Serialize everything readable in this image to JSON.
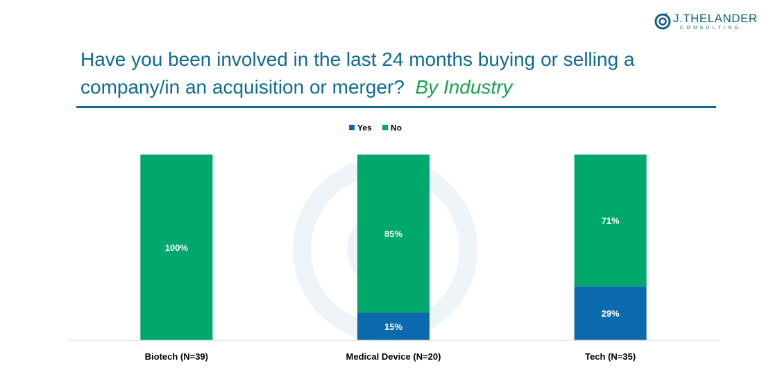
{
  "logo": {
    "brand": "J.THELANDER",
    "tagline": "CONSULTING"
  },
  "title": {
    "main": "Have you been involved in the last 24 months buying or selling a company/in an acquisition or merger?",
    "accent": "By Industry"
  },
  "colors": {
    "yes": "#0b6aad",
    "no": "#00a86b",
    "title": "#0e6a93",
    "accent": "#17a34a"
  },
  "chart_data": {
    "type": "bar",
    "stacked": true,
    "categories": [
      "Biotech (N=39)",
      "Medical Device (N=20)",
      "Tech (N=35)"
    ],
    "series": [
      {
        "name": "Yes",
        "values": [
          0,
          15,
          29
        ],
        "labels": [
          "",
          "15%",
          "29%"
        ]
      },
      {
        "name": "No",
        "values": [
          100,
          85,
          71
        ],
        "labels": [
          "100%",
          "85%",
          "71%"
        ]
      }
    ],
    "ylim": [
      0,
      100
    ],
    "grid": false,
    "legend": "top-center"
  }
}
